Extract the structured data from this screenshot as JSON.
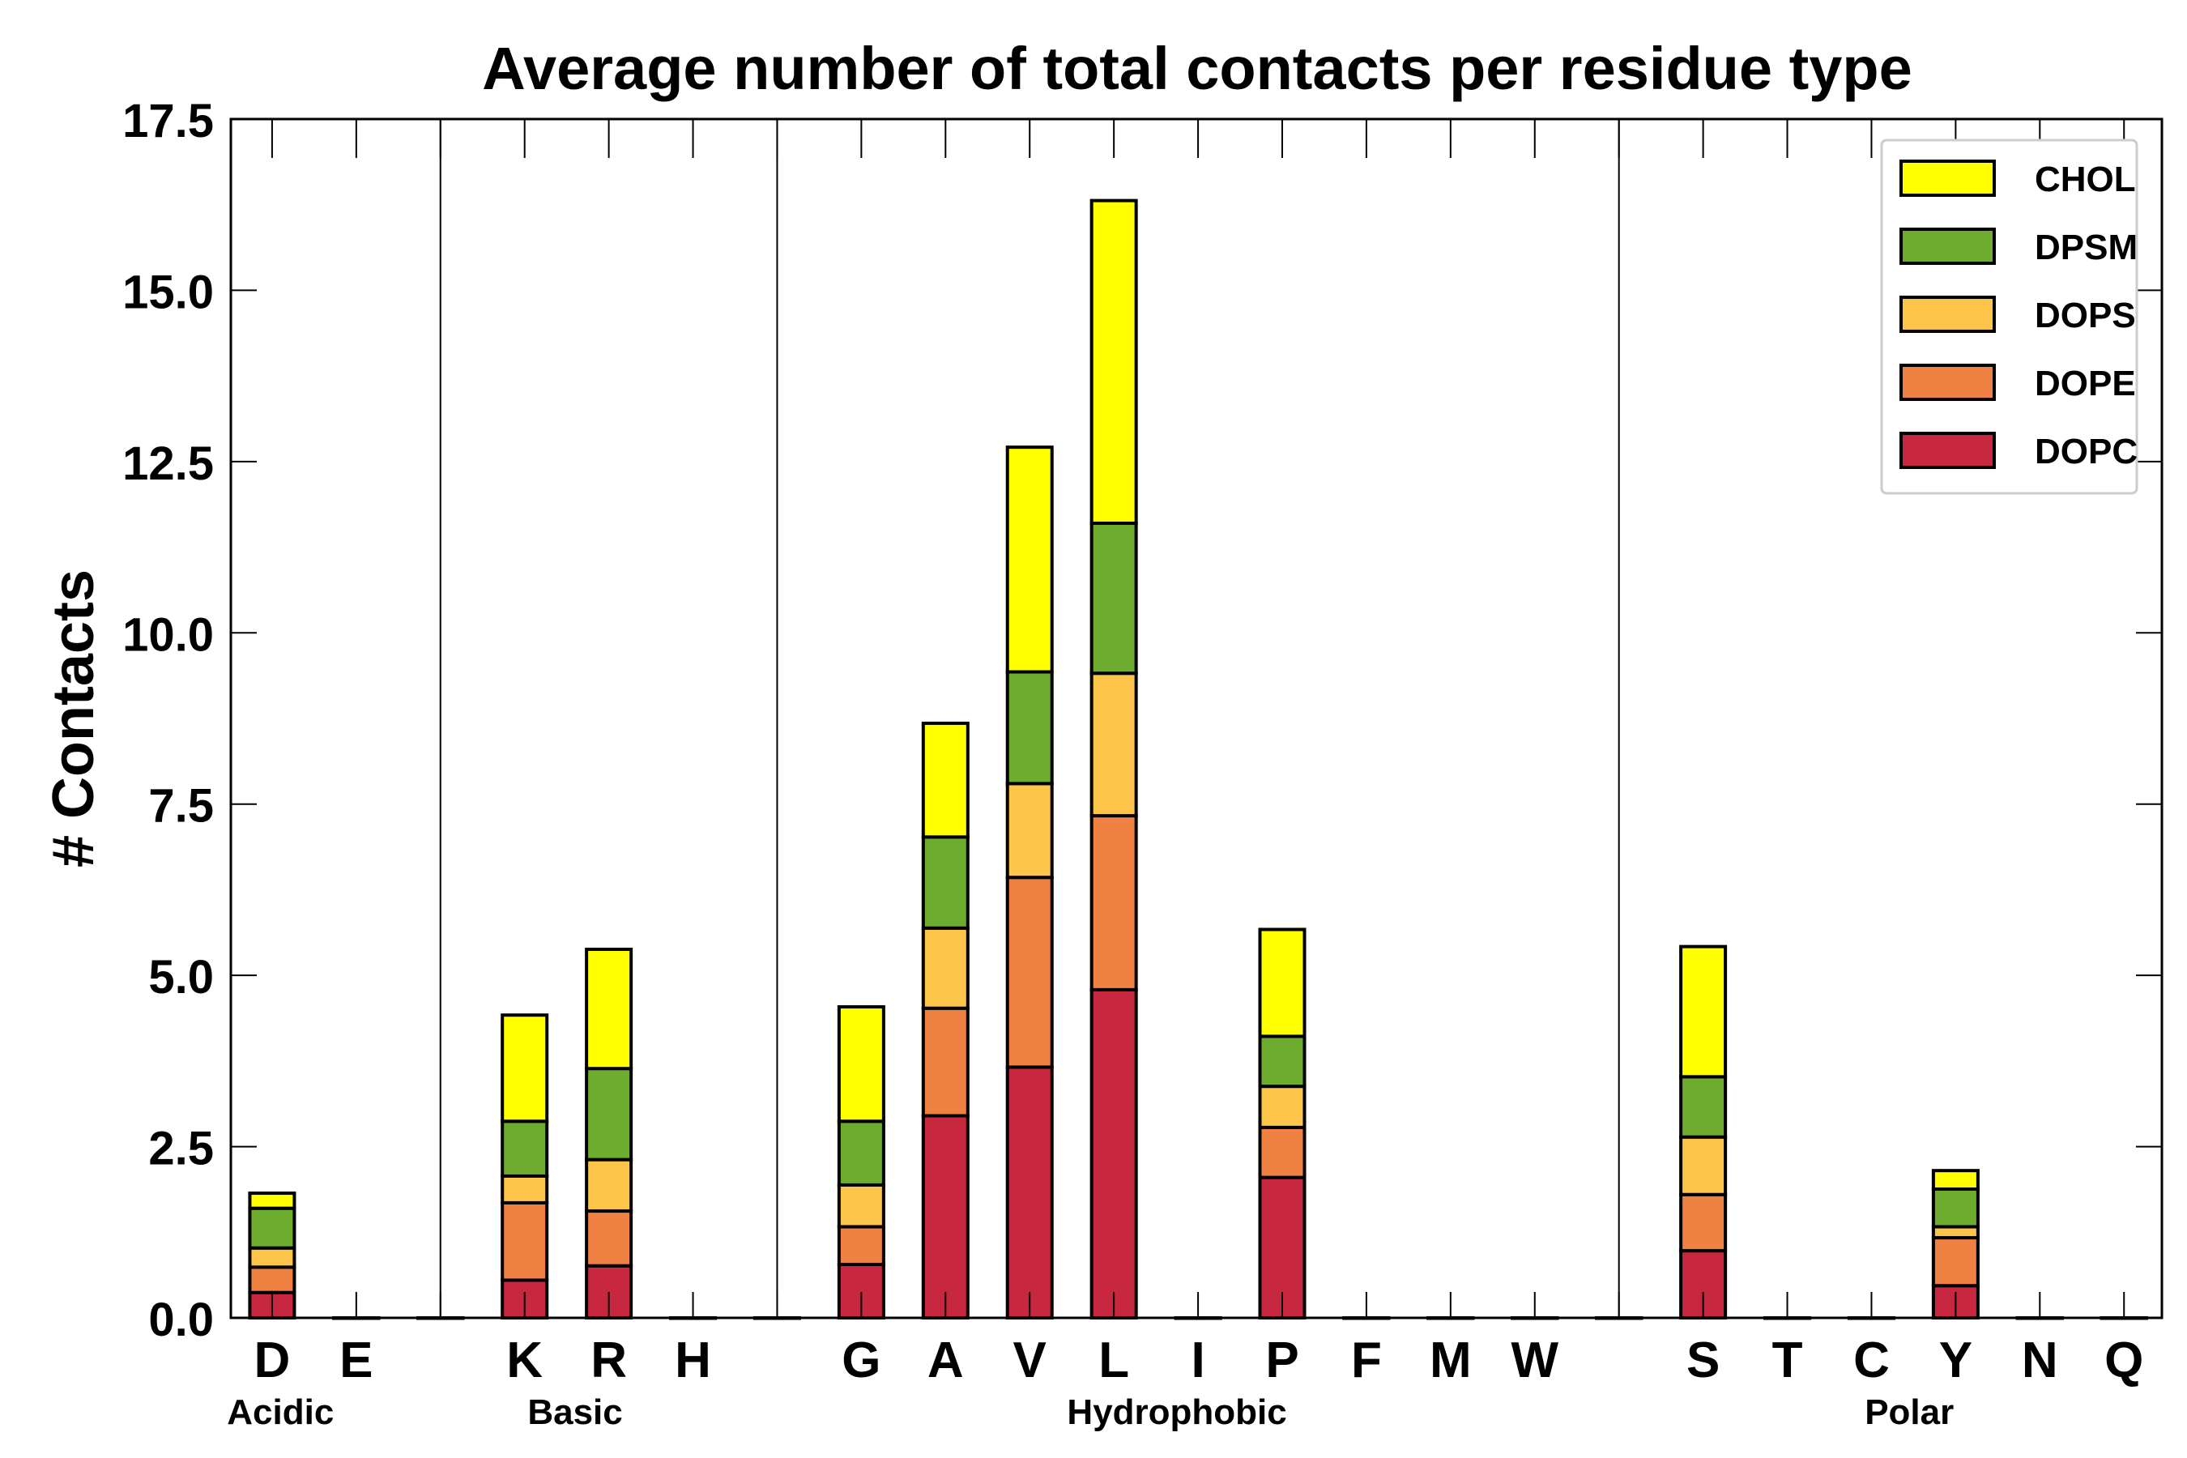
{
  "chart_data": {
    "type": "bar",
    "stacked": true,
    "title": "Average number of total contacts per residue type",
    "xlabel": "",
    "ylabel": "# Contacts",
    "ylim": [
      0,
      17.5
    ],
    "yticks": [
      "0.0",
      "2.5",
      "5.0",
      "7.5",
      "10.0",
      "12.5",
      "15.0",
      "17.5"
    ],
    "categories": [
      "D",
      "E",
      "",
      "K",
      "R",
      "H",
      "",
      "G",
      "A",
      "V",
      "L",
      "I",
      "P",
      "F",
      "M",
      "W",
      "",
      "S",
      "T",
      "C",
      "Y",
      "N",
      "Q"
    ],
    "separators_after_index": [
      2,
      6,
      16
    ],
    "groups": [
      {
        "label": "Acidic",
        "center": 0.1
      },
      {
        "label": "Basic",
        "center": 3.6
      },
      {
        "label": "Hydrophobic",
        "center": 10.75
      },
      {
        "label": "Polar",
        "center": 19.45
      }
    ],
    "series": [
      {
        "name": "DOPC",
        "color": "#c8283f",
        "values": [
          0.37,
          0,
          0,
          0.55,
          0.76,
          0,
          0,
          0.78,
          2.95,
          3.66,
          4.79,
          0,
          2.05,
          0,
          0,
          0,
          0,
          0.98,
          0,
          0,
          0.47,
          0,
          0
        ]
      },
      {
        "name": "DOPE",
        "color": "#ef8142",
        "values": [
          0.37,
          0,
          0,
          1.13,
          0.8,
          0,
          0,
          0.55,
          1.57,
          2.77,
          2.54,
          0,
          0.73,
          0,
          0,
          0,
          0,
          0.82,
          0,
          0,
          0.7,
          0,
          0
        ]
      },
      {
        "name": "DOPS",
        "color": "#fcc549",
        "values": [
          0.28,
          0,
          0,
          0.39,
          0.75,
          0,
          0,
          0.61,
          1.17,
          1.37,
          2.08,
          0,
          0.6,
          0,
          0,
          0,
          0,
          0.84,
          0,
          0,
          0.16,
          0,
          0
        ]
      },
      {
        "name": "DPSM",
        "color": "#6dac2f",
        "values": [
          0.58,
          0,
          0,
          0.8,
          1.33,
          0,
          0,
          0.93,
          1.33,
          1.63,
          2.19,
          0,
          0.73,
          0,
          0,
          0,
          0,
          0.88,
          0,
          0,
          0.55,
          0,
          0
        ]
      },
      {
        "name": "CHOL",
        "color": "#ffff00",
        "values": [
          0.22,
          0,
          0,
          1.55,
          1.74,
          0,
          0,
          1.67,
          1.66,
          3.28,
          4.71,
          0,
          1.56,
          0,
          0,
          0,
          0,
          1.9,
          0,
          0,
          0.27,
          0,
          0
        ]
      }
    ],
    "legend": {
      "placement": "top-right",
      "order": [
        "CHOL",
        "DPSM",
        "DOPS",
        "DOPE",
        "DOPC"
      ]
    },
    "grid": false
  }
}
